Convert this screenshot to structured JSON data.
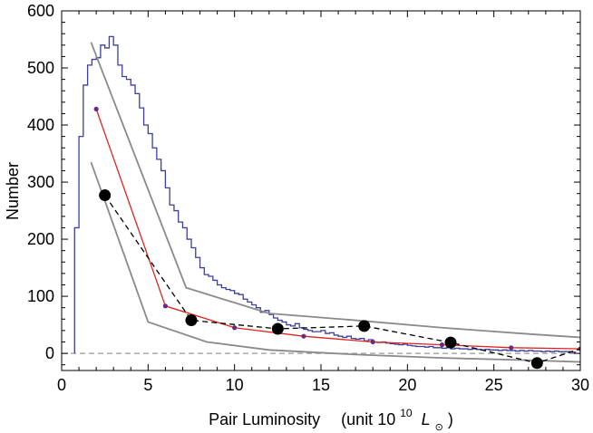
{
  "chart_data": {
    "type": "line",
    "title": "",
    "xlabel": "Pair Luminosity",
    "xlabel_unit_prefix": "(unit 10",
    "xlabel_unit_exp": "10",
    "xlabel_unit_symbol": "L",
    "xlabel_unit_sub": "⊙",
    "xlabel_unit_suffix": ")",
    "ylabel": "Number",
    "xlim": [
      0,
      30
    ],
    "ylim": [
      -30,
      600
    ],
    "x_ticks": [
      0,
      5,
      10,
      15,
      20,
      25,
      30
    ],
    "y_ticks": [
      0,
      100,
      200,
      300,
      400,
      500,
      600
    ],
    "zero_line": true,
    "grid": false,
    "colors": {
      "histogram": "#3b3f9e",
      "model": "#e0241f",
      "model_points": "#6a2a7a",
      "bounds": "#8a8a8a",
      "observed": "#000000",
      "zero_line": "#999999"
    },
    "series": [
      {
        "kind": "histogram",
        "bin_width": 0.25,
        "x_start": 0.75,
        "counts": [
          220,
          380,
          470,
          505,
          515,
          518,
          540,
          535,
          555,
          540,
          505,
          485,
          480,
          470,
          455,
          430,
          400,
          385,
          360,
          340,
          320,
          290,
          260,
          250,
          230,
          220,
          200,
          185,
          168,
          150,
          138,
          135,
          128,
          120,
          115,
          112,
          110,
          105,
          103,
          95,
          90,
          85,
          80,
          72,
          75,
          68,
          62,
          58,
          55,
          50,
          48,
          52,
          45,
          42,
          40,
          38,
          38,
          40,
          35,
          36,
          32,
          30,
          28,
          30,
          26,
          25,
          26,
          22,
          24,
          20,
          19,
          20,
          18,
          17,
          16,
          15,
          16,
          14,
          13,
          12,
          12,
          11,
          12,
          10,
          10,
          9,
          10,
          8,
          9,
          8,
          8,
          7,
          8,
          7,
          6,
          7,
          6,
          6,
          5,
          6,
          5,
          5,
          4,
          5,
          4,
          5,
          4,
          4,
          3,
          4,
          3,
          4,
          3,
          3,
          3,
          2
        ]
      },
      {
        "kind": "line-points",
        "x": [
          2.0,
          6.0,
          10.0,
          14.0,
          18.0,
          22.0,
          26.0,
          30.0
        ],
        "y": [
          428,
          83,
          45,
          30,
          20,
          15,
          10,
          8
        ]
      },
      {
        "kind": "line",
        "style": "upper-bound",
        "x": [
          1.7,
          7.2,
          12.0,
          17.0,
          22.0,
          27.0,
          30.0
        ],
        "y": [
          545,
          115,
          70,
          58,
          45,
          34,
          28
        ]
      },
      {
        "kind": "line",
        "style": "lower-bound",
        "x": [
          1.7,
          5.0,
          8.4,
          12.0,
          17.0,
          22.0,
          27.0,
          30.0
        ],
        "y": [
          335,
          55,
          20,
          6,
          -2,
          -8,
          -12,
          -15
        ]
      },
      {
        "kind": "dashed-points",
        "x": [
          2.5,
          7.5,
          12.5,
          17.5,
          22.5,
          27.5,
          30.0
        ],
        "y": [
          277,
          58,
          43,
          48,
          19,
          -17,
          8
        ]
      }
    ]
  }
}
